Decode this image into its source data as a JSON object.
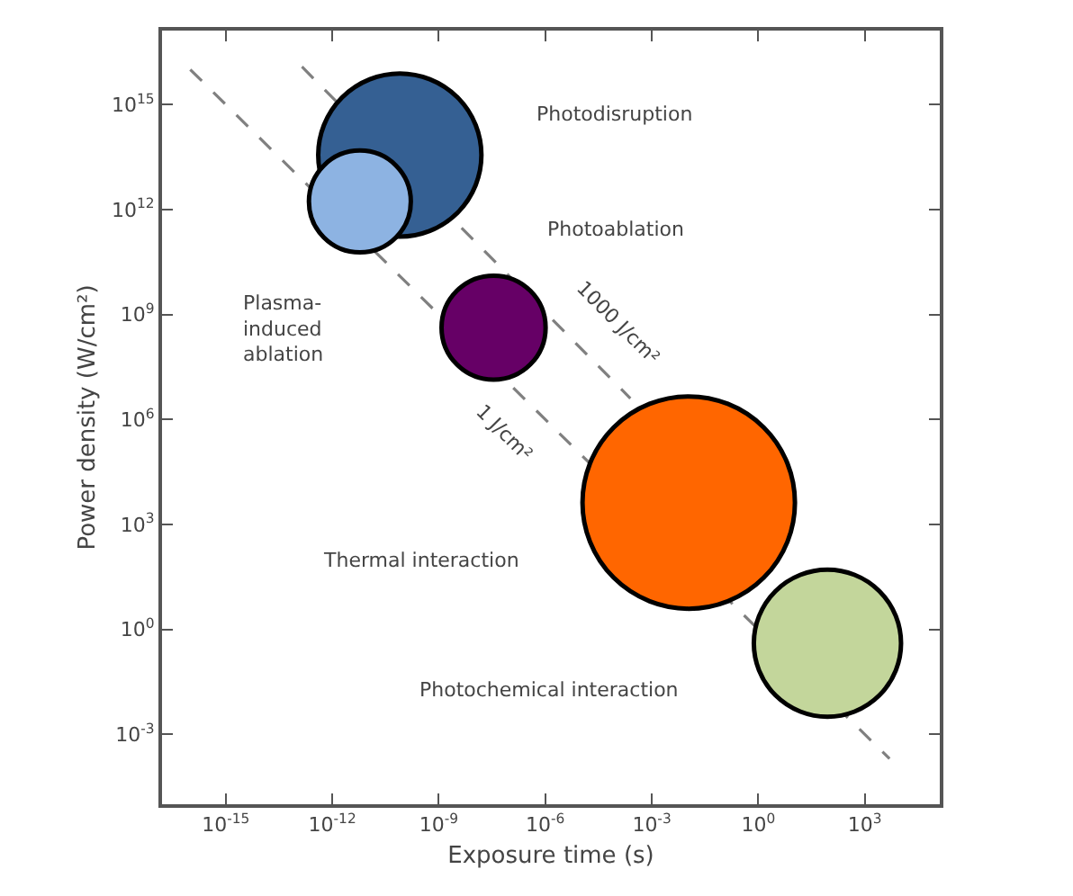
{
  "chart_data": {
    "type": "bubble",
    "xlabel": "Exposure time (s)",
    "ylabel": "Power density (W/cm²)",
    "log": "xy",
    "grid": false,
    "xlim": [
      1.6e-17,
      130000.0
    ],
    "ylim": [
      1e-05,
      1.3e+17
    ],
    "xticks": [
      {
        "value": 1e-15,
        "label": "10$^{-15}$"
      },
      {
        "value": 1e-12,
        "label": "10$^{-12}$"
      },
      {
        "value": 1e-09,
        "label": "10$^{-9}$"
      },
      {
        "value": 1e-06,
        "label": "10$^{-6}$"
      },
      {
        "value": 0.001,
        "label": "10$^{-3}$"
      },
      {
        "value": 1,
        "label": "10$^{0}$"
      },
      {
        "value": 1000,
        "label": "10$^{3}$"
      }
    ],
    "yticks": [
      {
        "value": 0.001,
        "label": "10$^{-3}$"
      },
      {
        "value": 1,
        "label": "10$^{0}$"
      },
      {
        "value": 1000,
        "label": "10$^{3}$"
      },
      {
        "value": 1000000.0,
        "label": "10$^{6}$"
      },
      {
        "value": 1000000000.0,
        "label": "10$^{9}$"
      },
      {
        "value": 1000000000000.0,
        "label": "10$^{12}$"
      },
      {
        "value": 1000000000000000.0,
        "label": "10$^{15}$"
      }
    ],
    "series": [
      {
        "type": "line",
        "color": "#808080",
        "line_style": "dashed",
        "marker": "none",
        "x": [
          1e-16,
          5000
        ],
        "values": [
          1e+16,
          0.0002
        ]
      },
      {
        "type": "line",
        "color": "#808080",
        "line_style": "dashed",
        "marker": "none",
        "x": [
          1.4e-13,
          0.00025
        ],
        "values": [
          1.2e+16,
          4000000.0
        ]
      },
      {
        "marker": "circle",
        "colors": [
          "#356093",
          "#8db3e2",
          "#660066",
          "#ff6600",
          "#c3d69b"
        ],
        "x": [
          8e-11,
          6e-12,
          3.5e-08,
          0.011,
          89
        ],
        "values": [
          36000000000000.0,
          1700000000000.0,
          420000000.0,
          4200,
          0.4
        ],
        "sizes": [
          0.59,
          0.23,
          0.24,
          1,
          0.48
        ]
      }
    ],
    "annotations": [
      "Photodisruption",
      "Photoablation",
      "Plasma-\ninduced\nablation",
      "Thermal interaction",
      "Photochemical interaction",
      "1000 J/cm²",
      "1 J/cm²"
    ]
  }
}
